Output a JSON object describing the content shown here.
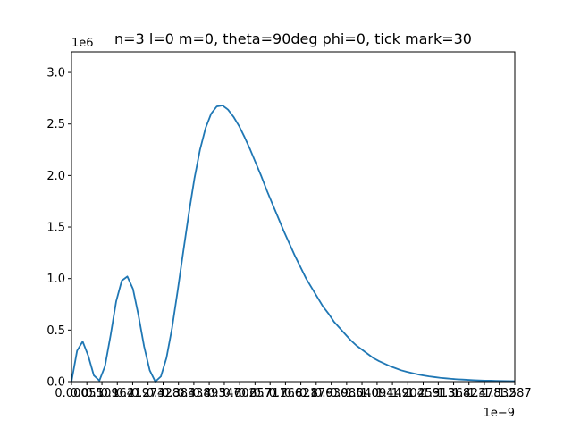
{
  "chart_data": {
    "type": "line",
    "title": "n=3 l=0 m=0, theta=90deg phi=0, tick mark=30",
    "xlabel": "",
    "ylabel": "",
    "x_offset_label": "1e−9",
    "y_offset_label": "1e6",
    "xlim": [
      0.0,
      1.587
    ],
    "ylim": [
      0.0,
      3.2
    ],
    "y_ticks": [
      0.0,
      0.5,
      1.0,
      1.5,
      2.0,
      2.5,
      3.0
    ],
    "y_tick_labels": [
      "0.0",
      "0.5",
      "1.0",
      "1.5",
      "2.0",
      "2.5",
      "3.0"
    ],
    "x_ticks": [
      0.0,
      0.055,
      0.109,
      0.164,
      0.219,
      0.274,
      0.328,
      0.383,
      0.438,
      0.493,
      0.547,
      0.602,
      0.657,
      0.711,
      0.766,
      0.821,
      0.876,
      0.93,
      0.985,
      1.04,
      1.094,
      1.149,
      1.204,
      1.259,
      1.313,
      1.368,
      1.423,
      1.478,
      1.532,
      1.587
    ],
    "x_tick_labels": [
      "0.000",
      "0.055",
      "0.109",
      "0.164",
      "0.219",
      "0.274",
      "0.328",
      "0.383",
      "0.438",
      "0.493",
      "0.547",
      "0.602",
      "0.657",
      "0.711",
      "0.766",
      "0.821",
      "0.876",
      "0.930",
      "0.985",
      "1.040",
      "1.094",
      "1.149",
      "1.204",
      "1.259",
      "1.313",
      "1.368",
      "1.423",
      "1.478",
      "1.532",
      "1.587"
    ],
    "series": [
      {
        "color": "#1f77b4",
        "x": [
          0.0,
          0.02,
          0.04,
          0.06,
          0.08,
          0.1,
          0.12,
          0.14,
          0.16,
          0.18,
          0.2,
          0.22,
          0.24,
          0.26,
          0.28,
          0.3,
          0.32,
          0.34,
          0.36,
          0.38,
          0.4,
          0.42,
          0.44,
          0.46,
          0.48,
          0.5,
          0.52,
          0.54,
          0.56,
          0.58,
          0.6,
          0.62,
          0.64,
          0.66,
          0.68,
          0.7,
          0.72,
          0.74,
          0.76,
          0.78,
          0.8,
          0.82,
          0.84,
          0.86,
          0.88,
          0.9,
          0.92,
          0.94,
          0.96,
          0.98,
          1.0,
          1.02,
          1.04,
          1.06,
          1.08,
          1.1,
          1.12,
          1.14,
          1.16,
          1.18,
          1.2,
          1.22,
          1.24,
          1.26,
          1.28,
          1.3,
          1.32,
          1.34,
          1.36,
          1.38,
          1.4,
          1.42,
          1.44,
          1.46,
          1.48,
          1.5,
          1.52,
          1.54,
          1.56,
          1.587
        ],
        "y": [
          0.0,
          0.3,
          0.39,
          0.25,
          0.06,
          0.01,
          0.15,
          0.45,
          0.78,
          0.98,
          1.02,
          0.9,
          0.64,
          0.34,
          0.11,
          0.0,
          0.05,
          0.23,
          0.52,
          0.88,
          1.26,
          1.63,
          1.97,
          2.25,
          2.46,
          2.6,
          2.67,
          2.68,
          2.64,
          2.57,
          2.48,
          2.37,
          2.25,
          2.12,
          1.99,
          1.85,
          1.72,
          1.59,
          1.46,
          1.34,
          1.22,
          1.11,
          1.0,
          0.91,
          0.82,
          0.73,
          0.66,
          0.58,
          0.52,
          0.46,
          0.4,
          0.35,
          0.31,
          0.27,
          0.23,
          0.2,
          0.175,
          0.15,
          0.13,
          0.11,
          0.095,
          0.082,
          0.07,
          0.06,
          0.051,
          0.044,
          0.037,
          0.032,
          0.027,
          0.023,
          0.02,
          0.017,
          0.014,
          0.012,
          0.01,
          0.009,
          0.007,
          0.006,
          0.005,
          0.004
        ]
      }
    ]
  }
}
